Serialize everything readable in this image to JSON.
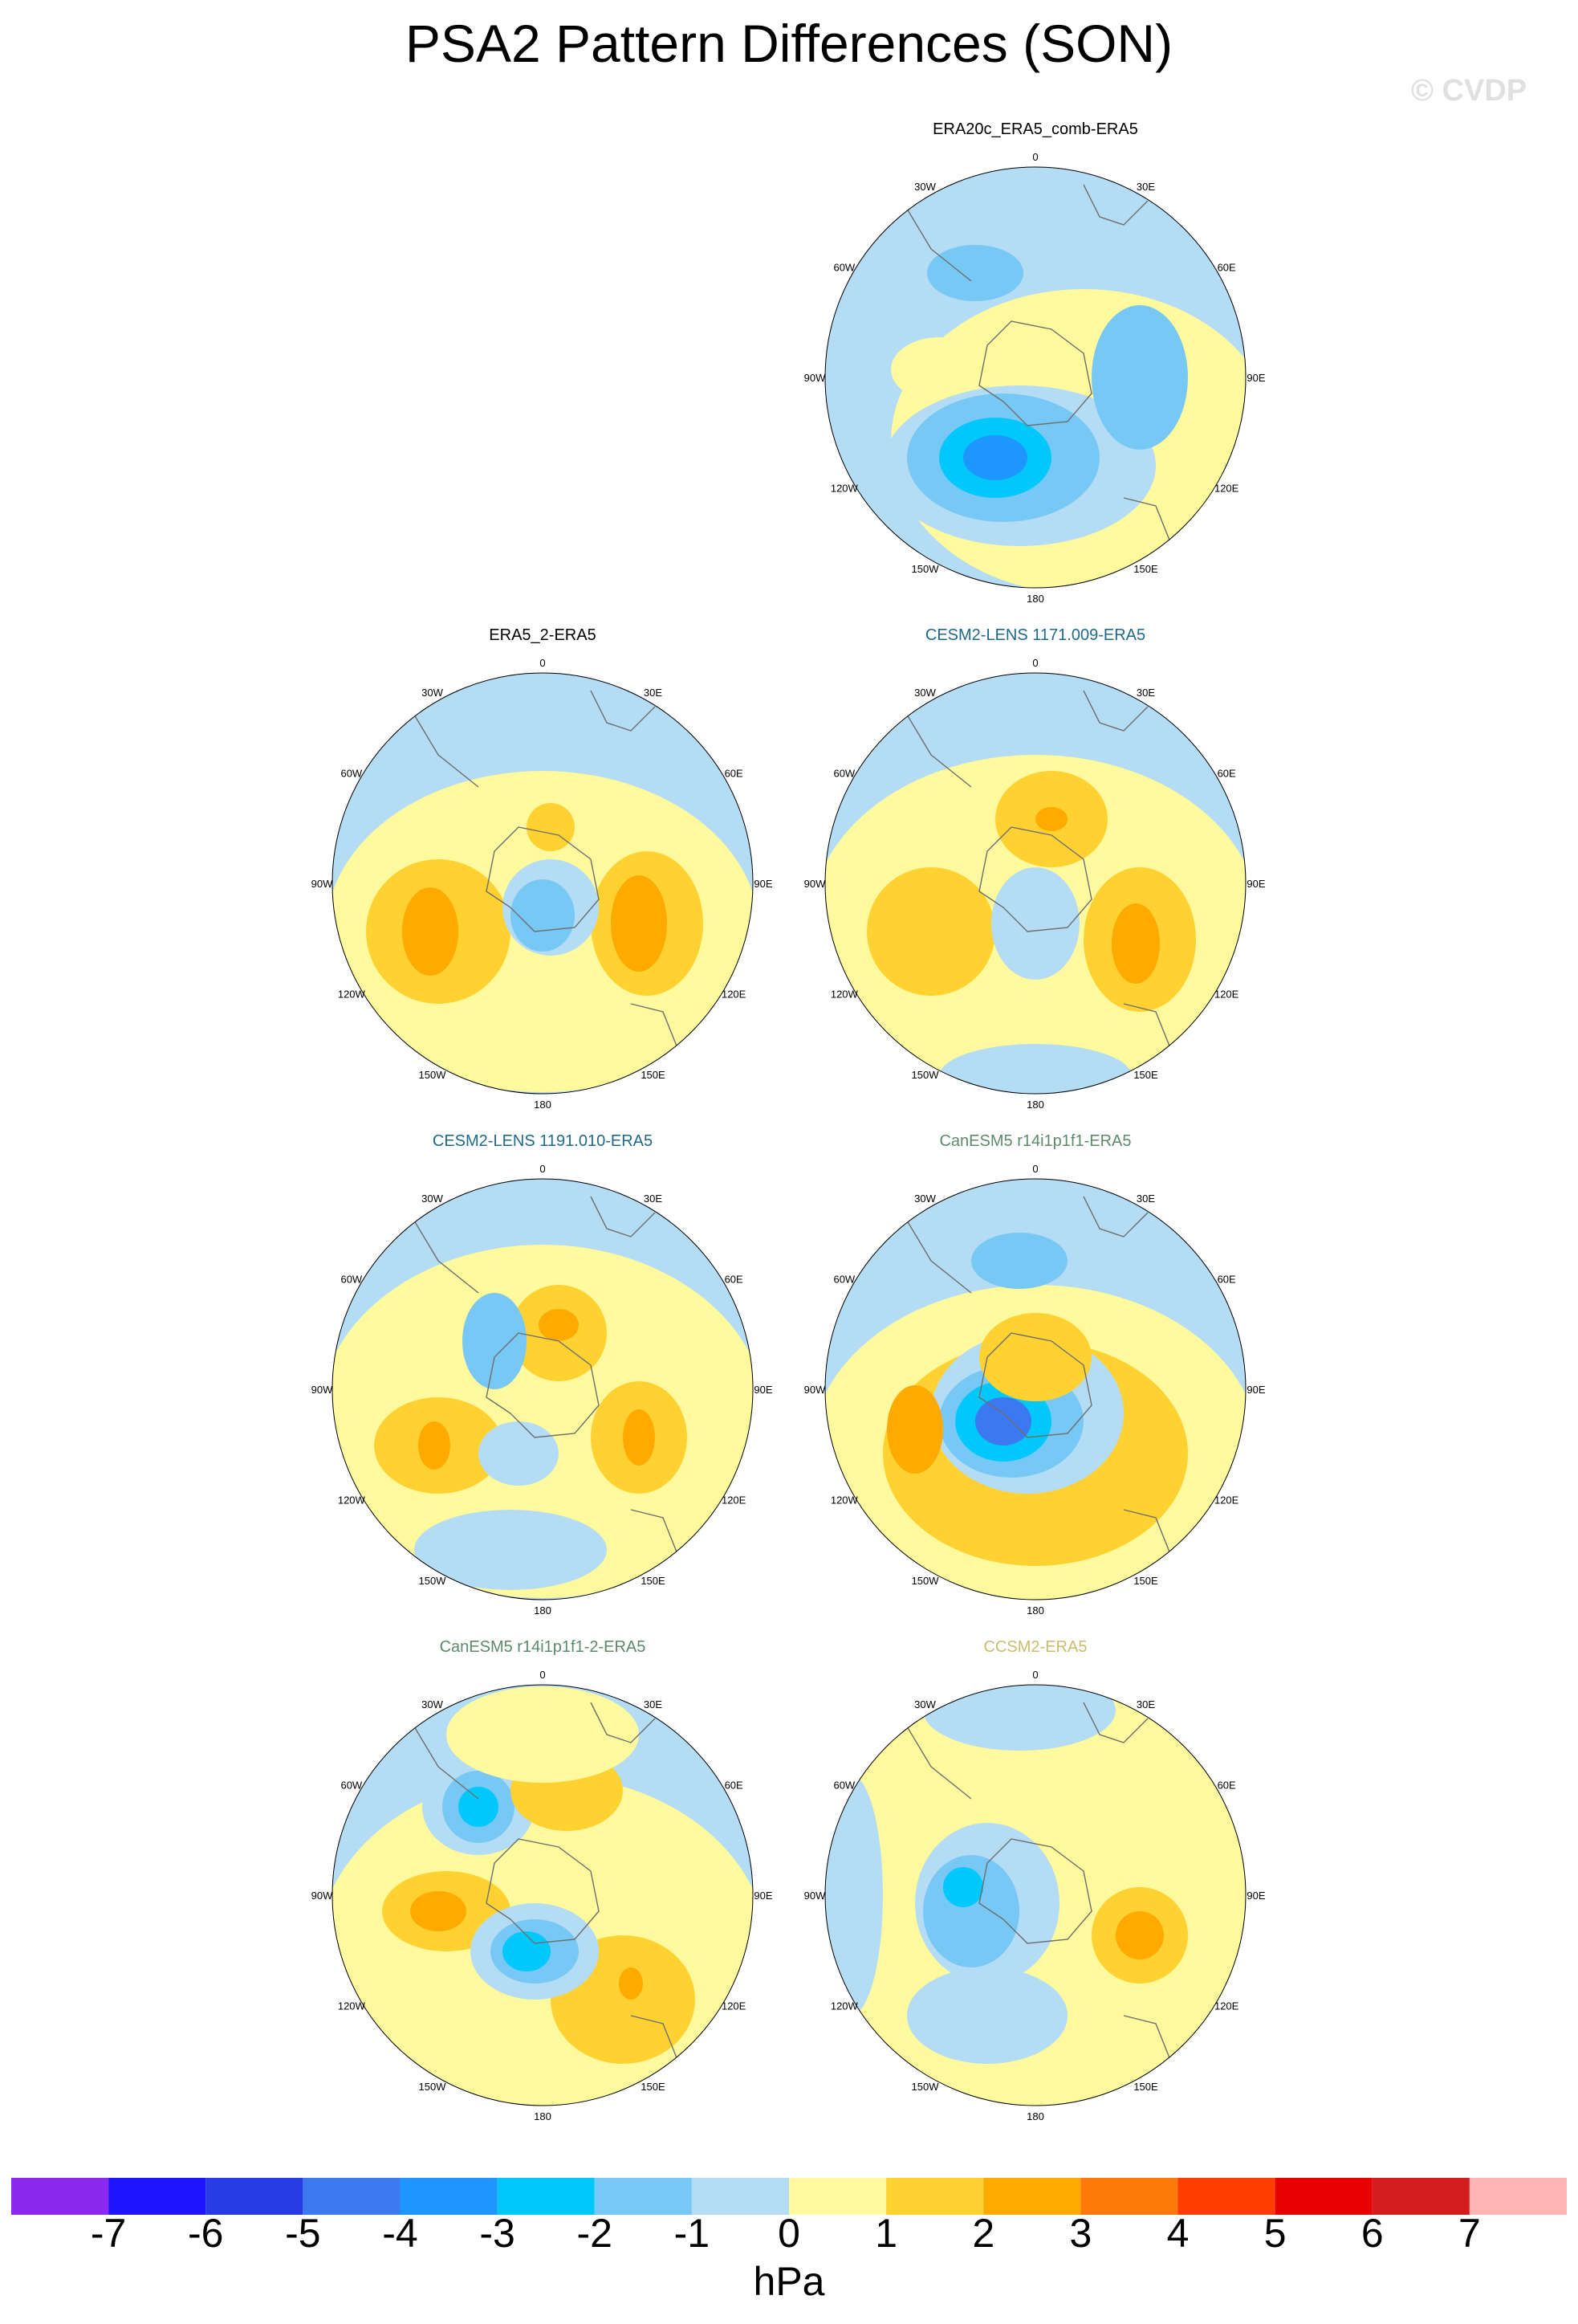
{
  "title": "PSA2 Pattern Differences (SON)",
  "copyright": "© CVDP",
  "panel_title_colors": {
    "black": "#000000",
    "teal": "#1f6a8a",
    "gray_green": "#5d8a6a",
    "khaki": "#c8be6e"
  },
  "panels": [
    {
      "title": "ERA20c_ERA5_comb-ERA5",
      "title_color": "black"
    },
    {
      "title": "ERA5_2-ERA5",
      "title_color": "black"
    },
    {
      "title": "CESM2-LENS 1171.009-ERA5",
      "title_color": "teal"
    },
    {
      "title": "CESM2-LENS 1191.010-ERA5",
      "title_color": "teal"
    },
    {
      "title": "CanESM5 r14i1p1f1-ERA5",
      "title_color": "gray_green"
    },
    {
      "title": "CanESM5 r14i1p1f1-2-ERA5",
      "title_color": "gray_green"
    },
    {
      "title": "CCSM2-ERA5",
      "title_color": "khaki"
    }
  ],
  "lon_labels": {
    "top": "0",
    "bottom": "180",
    "left": "90W",
    "right": "90E",
    "upper_left_30": "30W",
    "upper_right_30": "30E",
    "upper_left_60": "60W",
    "upper_right_60": "60E",
    "lower_left_120": "120W",
    "lower_right_120": "120E",
    "lower_left_150": "150W",
    "lower_right_150": "150E"
  },
  "colorbar": {
    "units": "hPa",
    "ticks": [
      "-7",
      "-6",
      "-5",
      "-4",
      "-3",
      "-2",
      "-1",
      "0",
      "1",
      "2",
      "3",
      "4",
      "5",
      "6",
      "7"
    ],
    "colors": [
      "#8c28f0",
      "#1e14ff",
      "#283ce6",
      "#3c78f0",
      "#1e96ff",
      "#00c8fa",
      "#78c8f5",
      "#b4dcf5",
      "#fffa9e",
      "#ffd232",
      "#ffaa00",
      "#ff780a",
      "#ff3c00",
      "#e60000",
      "#d21e1e",
      "#ffb4b4"
    ]
  }
}
